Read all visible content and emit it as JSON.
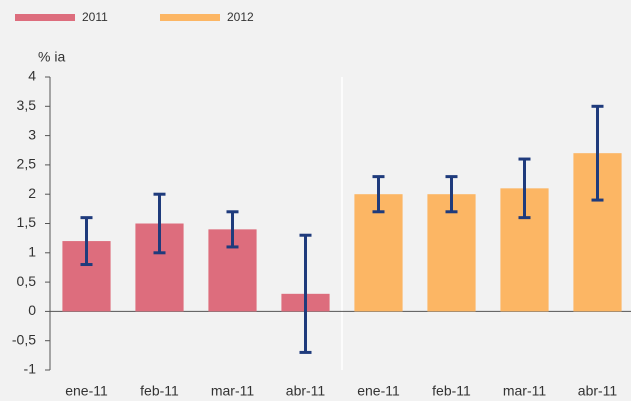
{
  "chart_data": {
    "type": "bar",
    "y_label": "% ia",
    "categories": [
      "ene-11",
      "feb-11",
      "mar-11",
      "abr-11",
      "ene-11",
      "feb-11",
      "mar-11",
      "abr-11"
    ],
    "series": [
      {
        "name": "2011",
        "color": "#dd6d7d",
        "values": [
          1.2,
          1.5,
          1.4,
          0.3,
          null,
          null,
          null,
          null
        ],
        "errors": [
          0.4,
          0.5,
          0.3,
          1.0,
          null,
          null,
          null,
          null
        ]
      },
      {
        "name": "2012",
        "color": "#fcb664",
        "values": [
          null,
          null,
          null,
          null,
          2.0,
          2.0,
          2.1,
          2.7
        ],
        "errors": [
          null,
          null,
          null,
          null,
          0.3,
          0.3,
          0.5,
          0.8
        ]
      }
    ],
    "error_color": "#1f3b7c",
    "ylim": [
      -1,
      4
    ],
    "yticks": [
      {
        "value": -1,
        "label": "-1"
      },
      {
        "value": -0.5,
        "label": "-0,5"
      },
      0,
      {
        "value": 0.5,
        "label": "0,5"
      },
      1,
      {
        "value": 1.5,
        "label": "1,5"
      },
      2,
      {
        "value": 2.5,
        "label": "2,5"
      },
      3,
      {
        "value": 3.5,
        "label": "3,5"
      },
      4
    ],
    "legend": "top-left"
  }
}
